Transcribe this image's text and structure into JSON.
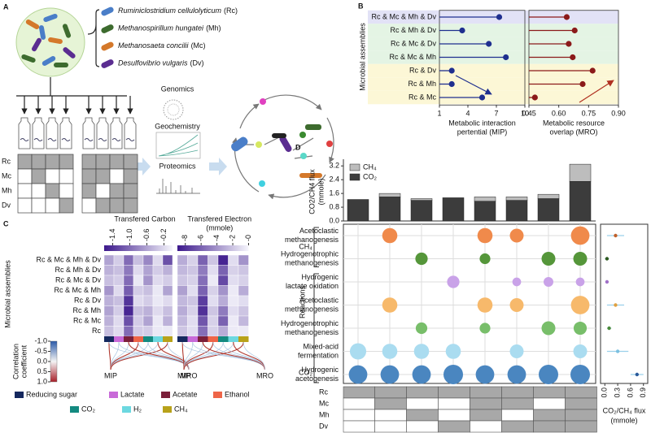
{
  "panel_a": {
    "label": "A",
    "species": [
      {
        "name": "Ruminiclostridium cellulolyticum",
        "abbr": "(Rc)",
        "color": "#4a7ec8"
      },
      {
        "name": "Methanospirillum hungatei",
        "abbr": "(Mh)",
        "color": "#3d6b2e"
      },
      {
        "name": "Methanosaeta concilii",
        "abbr": "(Mc)",
        "color": "#d4782a"
      },
      {
        "name": "Desulfovibrio vulgaris",
        "abbr": "(Dv)",
        "color": "#5b2d91"
      }
    ],
    "omics": [
      "Genomics",
      "Geochemistry",
      "Proteomics"
    ]
  },
  "assemblies": {
    "rows": [
      "Rc",
      "Mc",
      "Mh",
      "Dv"
    ],
    "membership": [
      [
        1,
        1,
        1,
        1,
        1,
        1,
        1,
        1
      ],
      [
        0,
        1,
        0,
        0,
        1,
        1,
        0,
        1
      ],
      [
        0,
        0,
        1,
        0,
        1,
        0,
        1,
        1
      ],
      [
        0,
        0,
        0,
        1,
        0,
        1,
        1,
        1
      ]
    ]
  },
  "chart_data": [
    {
      "type": "lollipop",
      "panel_label": "B",
      "y_label": "Microbial assemblies",
      "categories": [
        "Rc & Mc & Mh & Dv",
        "Rc & Mh & Dv",
        "Rc & Mc & Dv",
        "Rc & Mc & Mh",
        "Rc & Dv",
        "Rc & Mh",
        "Rc & Mc"
      ],
      "row_colors": [
        "#e2e2f6",
        "#e4f4e4",
        "#e4f4e4",
        "#e4f4e4",
        "#fcf7d6",
        "#fcf7d6",
        "#fcf7d6"
      ],
      "x_label": [
        "Metabolic interaction",
        "pertential (MIP)"
      ],
      "values": [
        7.3,
        3.4,
        6.2,
        8.0,
        2.3,
        2.3,
        5.5
      ],
      "color": "#1f2f8f",
      "xlim": [
        1,
        10
      ],
      "xticks": [
        1,
        4,
        7,
        10
      ]
    },
    {
      "type": "lollipop",
      "x_label": [
        "Metabolic resource",
        "overlap (MRO)"
      ],
      "values": [
        0.64,
        0.68,
        0.65,
        0.67,
        0.77,
        0.72,
        0.48
      ],
      "color": "#8b1a1a",
      "xlim": [
        0.45,
        0.9
      ],
      "xticks": [
        0.45,
        {
          "value": 0.6,
          "label": "0.60"
        },
        0.75,
        {
          "value": 0.9,
          "label": "0.90"
        }
      ]
    },
    {
      "type": "heatmap",
      "panel_label": "C",
      "y_label": "Microbial assemblies",
      "title": [
        "Transfered Carbon"
      ],
      "categories": [
        "Rc & Mc & Mh & Dv",
        "Rc & Mh & Dv",
        "Rc & Mc & Dv",
        "Rc & Mc & Mh",
        "Rc & Dv",
        "Rc & Mh",
        "Rc & Mc",
        "Rc"
      ],
      "legend": [
        {
          "name": "Reducing sugar",
          "color": "#14285e"
        },
        {
          "name": "Lactate",
          "color": "#c86ad8"
        },
        {
          "name": "Acetate",
          "color": "#7a1f3a"
        },
        {
          "name": "Ethanol",
          "color": "#ee6548"
        },
        {
          "name": "CO₂",
          "color": "#138a80"
        },
        {
          "name": "H₂",
          "color": "#6cd8e0"
        },
        {
          "name": "CH₄",
          "color": "#b8a21a"
        }
      ],
      "values": [
        [
          -0.6,
          -0.3,
          -1.0,
          -0.4,
          -0.8,
          -0.2,
          -1.2
        ],
        [
          -0.5,
          -0.4,
          -0.9,
          -0.2,
          -0.6,
          -0.3,
          -0.5
        ],
        [
          -0.4,
          -0.3,
          -1.0,
          -0.1,
          -0.7,
          -0.2,
          -0.3
        ],
        [
          -0.7,
          -0.2,
          -1.1,
          -0.3,
          -0.4,
          -0.1,
          -0.6
        ],
        [
          -0.5,
          -0.4,
          -1.4,
          -0.2,
          -0.3,
          -0.1,
          -0.2
        ],
        [
          -0.6,
          -0.3,
          -1.5,
          -0.4,
          -0.5,
          -0.2,
          -0.4
        ],
        [
          -0.5,
          -0.2,
          -1.2,
          -0.3,
          -0.6,
          -0.1,
          -0.5
        ],
        [
          -0.4,
          -0.2,
          -1.0,
          -0.3,
          -0.3,
          -0.1,
          -0.1
        ]
      ],
      "clim": [
        -1.6,
        0
      ],
      "cticks": [
        -1.4,
        {
          "value": -1,
          "label": "-1.0"
        },
        -0.6,
        -0.2
      ],
      "correlation_colorbar": {
        "label": [
          "Correlation",
          "coefficient"
        ],
        "ticks": [
          {
            "value": -1,
            "label": "-1.0"
          },
          -0.5,
          {
            "value": 0,
            "label": "0.0"
          },
          0.5,
          {
            "value": 1,
            "label": "1.0"
          }
        ]
      },
      "links": [
        "MIP",
        "MRO"
      ]
    },
    {
      "type": "heatmap",
      "title": [
        "Transfered Electron",
        "(mmole)"
      ],
      "values": [
        [
          -3,
          -1.5,
          -6,
          -2,
          -8.5,
          -1,
          -4
        ],
        [
          -2.5,
          -2,
          -5,
          -1,
          -6,
          -1.5,
          -2
        ],
        [
          -2,
          -1.5,
          -5.5,
          -0.5,
          -7,
          -1,
          -1.5
        ],
        [
          -3.5,
          -1,
          -6,
          -1.5,
          -4,
          -0.5,
          -3
        ],
        [
          -2.5,
          -2,
          -7.5,
          -1,
          -3,
          -0.5,
          -1
        ],
        [
          -3,
          -1.5,
          -8,
          -2,
          -5,
          -1,
          -2
        ],
        [
          -2.5,
          -1,
          -6.5,
          -1.5,
          -6,
          -0.5,
          -2.5
        ],
        [
          -2,
          -1,
          -5.5,
          -1.5,
          -3,
          -0.5,
          -0.5
        ]
      ],
      "clim": [
        -9,
        0
      ],
      "cticks": [
        -8,
        -6,
        -4,
        -2,
        {
          "value": 0,
          "label": "-0"
        }
      ],
      "links": [
        "MIP",
        "MRO"
      ]
    },
    {
      "type": "stacked_bar",
      "panel_label": "D",
      "y_label": [
        "CO2/CH4 flux",
        "(mmole)"
      ],
      "series": [
        {
          "name": "CO₂",
          "color": "#3c3c3c",
          "values": [
            1.25,
            1.4,
            1.2,
            1.35,
            1.15,
            1.2,
            1.3,
            2.3
          ]
        },
        {
          "name": "CH₄",
          "color": "#bdbdbd",
          "values": [
            0,
            0.2,
            0.1,
            0,
            0.25,
            0.2,
            0.25,
            1.0
          ]
        }
      ],
      "ylim": [
        0,
        3.4
      ],
      "yticks": [
        {
          "value": 0,
          "label": "0.0"
        },
        0.8,
        1.6,
        2.4,
        3.2
      ]
    },
    {
      "type": "bubble",
      "y_label": "Reactions",
      "groups": [
        {
          "label": "CH₄",
          "reactions": [
            {
              "label": [
                "Acetoclastic",
                "methanogenesis"
              ],
              "color": "#f08a4b",
              "sizes": [
                null,
                0.6,
                null,
                null,
                0.6,
                0.5,
                null,
                0.9
              ]
            },
            {
              "label": [
                "Hydrogenotrophic",
                "methanogenesis"
              ],
              "color": "#55963a",
              "sizes": [
                null,
                null,
                0.4,
                null,
                0.3,
                null,
                0.5,
                0.5
              ]
            }
          ]
        },
        {
          "label": "CO₂",
          "reactions": [
            {
              "label": [
                "Hydrogenic",
                "lactate oxidation"
              ],
              "color": "#c9a2e8",
              "sizes": [
                null,
                null,
                null,
                0.4,
                null,
                0.2,
                0.25,
                0.2
              ]
            },
            {
              "label": [
                "Acetoclastic",
                "methanogenesis"
              ],
              "color": "#f7b96b",
              "sizes": [
                null,
                0.6,
                null,
                null,
                0.6,
                0.5,
                null,
                0.9
              ]
            },
            {
              "label": [
                "Hydrogenotrophic",
                "methanogenesis"
              ],
              "color": "#78be6a",
              "sizes": [
                null,
                null,
                0.35,
                null,
                0.3,
                null,
                0.5,
                0.45
              ]
            },
            {
              "label": [
                "Mixed-acid",
                "fermentation"
              ],
              "color": "#aadcf0",
              "sizes": [
                0.7,
                0.6,
                0.6,
                0.6,
                null,
                0.5,
                null,
                0.5
              ]
            },
            {
              "label": [
                "Hydrogenic",
                "acetogenesis"
              ],
              "color": "#4a86c0",
              "sizes": [
                0.9,
                0.9,
                0.9,
                1.0,
                0.9,
                0.9,
                1.0,
                1.0
              ]
            }
          ]
        }
      ]
    },
    {
      "type": "errorbar",
      "x_label": [
        "CO₂/CH₄ flux",
        "(mmole)"
      ],
      "values": [
        0.25,
        0.05,
        0.05,
        0.25,
        0.1,
        0.3,
        0.75
      ],
      "errors": [
        0.2,
        0.05,
        0.03,
        0.2,
        0.05,
        0.25,
        0.15
      ],
      "colors": [
        "#c0602a",
        "#2e5a20",
        "#a070c8",
        "#e0a040",
        "#4a8a3a",
        "#7cc0e0",
        "#2a5a9a"
      ],
      "error_color": "#9ad0ea",
      "xlim": [
        -0.1,
        1.0
      ],
      "xticks": [
        {
          "value": 0,
          "label": "0.0"
        },
        0.3,
        0.6,
        0.9
      ]
    }
  ]
}
